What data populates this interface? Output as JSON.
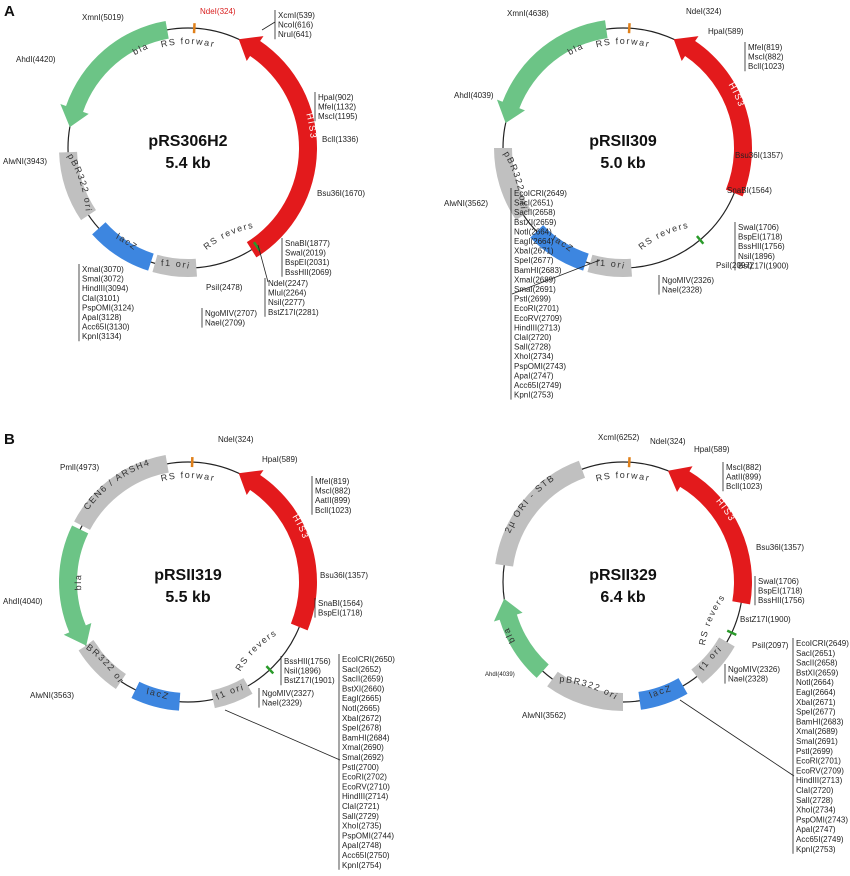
{
  "panels": {
    "a": "A",
    "b": "B"
  },
  "colors": {
    "bla": "#6cc486",
    "his3": "#e31a1c",
    "ori": "#c0c0c0",
    "lacz": "#3d86e0",
    "cen": "#c0c0c0",
    "tick_orange": "#e0801a",
    "tick_green": "#2a9a2a",
    "red_label": "#d92020"
  },
  "plasmids": [
    {
      "title": "pRS306H2",
      "size": "5.4 kb",
      "features": {
        "bla": "bla",
        "his3": "HIS3",
        "ori": "pBR322 ori",
        "lacz": "lacZ",
        "f1": "f1 ori",
        "pf": "pRS forward",
        "pr": "pRS reverse"
      },
      "labels": {
        "xmni": "XmnI(5019)",
        "ndei": "NdeI(324)",
        "ahdi": "AhdI(4420)",
        "alwni": "AlwNI(3943)",
        "psii": "PsiI(2478)",
        "top": [
          "XcmI(539)",
          "NcoI(616)",
          "NruI(641)"
        ],
        "his": [
          "HpaI(902)",
          "MfeI(1132)",
          "MscI(1195)"
        ],
        "bcli": "BclI(1336)",
        "bsu": "Bsu36I(1670)",
        "right": [
          "SnaBI(1877)",
          "SwaI(2019)",
          "BspEI(2031)",
          "BssHII(2069)"
        ],
        "mlu": [
          "NdeI(2247)",
          "MluI(2264)",
          "NsiI(2277)",
          "BstZ17I(2281)"
        ],
        "ngo": [
          "NgoMIV(2707)",
          "NaeI(2709)"
        ],
        "mcs": [
          "XmaI(3070)",
          "SmaI(3072)",
          "HindIII(3094)",
          "ClaI(3101)",
          "PspOMI(3124)",
          "ApaI(3128)",
          "Acc65I(3130)",
          "KpnI(3134)"
        ]
      }
    },
    {
      "title": "pRSII309",
      "size": "5.0 kb",
      "features": {
        "bla": "bla",
        "his3": "HIS3",
        "ori": "pBR322 ori",
        "lacz": "lacZ",
        "f1": "f1 ori",
        "pf": "pRS forward",
        "pr": "pRS reverse"
      },
      "labels": {
        "xmni": "XmnI(4638)",
        "ndei": "NdeI(324)",
        "hpai": "HpaI(589)",
        "ahdi": "AhdI(4039)",
        "alwni": "AlwNI(3562)",
        "his": [
          "MfeI(819)",
          "MscI(882)",
          "BclI(1023)"
        ],
        "bsu": "Bsu36I(1357)",
        "snabi": "SnaBI(1564)",
        "right": [
          "SwaI(1706)",
          "BspEI(1718)",
          "BssHII(1756)",
          "NsiI(1896)",
          "BstZ17I(1900)"
        ],
        "psii": "PsiI(2097)",
        "ngo": [
          "NgoMIV(2326)",
          "NaeI(2328)"
        ],
        "mcs": [
          "EcoICRI(2649)",
          "SacI(2651)",
          "SacII(2658)",
          "BstXI(2659)",
          "NotI(2664)",
          "EagI(2664)",
          "XbaI(2671)",
          "SpeI(2677)",
          "BamHI(2683)",
          "XmaI(2689)",
          "SmaI(2691)",
          "PstI(2699)",
          "EcoRI(2701)",
          "EcoRV(2709)",
          "HindIII(2713)",
          "ClaI(2720)",
          "SalI(2728)",
          "XhoI(2734)",
          "PspOMI(2743)",
          "ApaI(2747)",
          "Acc65I(2749)",
          "KpnI(2753)"
        ]
      }
    },
    {
      "title": "pRSII319",
      "size": "5.5 kb",
      "features": {
        "bla": "bla",
        "his3": "HIS3",
        "ori": "pBR322 ori",
        "lacz": "lacZ",
        "f1": "f1 ori",
        "cen": "CEN6 / ARSH4",
        "pf": "pRS forward",
        "pr": "pRS reverse"
      },
      "labels": {
        "pmli": "PmlI(4973)",
        "ndei": "NdeI(324)",
        "hpai": "HpaI(589)",
        "ahdi": "AhdI(4040)",
        "alwni": "AlwNI(3563)",
        "his": [
          "MfeI(819)",
          "MscI(882)",
          "AatII(899)",
          "BclI(1023)"
        ],
        "bsu": "Bsu36I(1357)",
        "right": [
          "SnaBI(1564)",
          "BspEI(1718)"
        ],
        "bss": [
          "BssHII(1756)",
          "NsiI(1896)",
          "BstZ17I(1901)"
        ],
        "ngo": [
          "NgoMIV(2327)",
          "NaeI(2329)"
        ],
        "mcs": [
          "EcoICRI(2650)",
          "SacI(2652)",
          "SacII(2659)",
          "BstXI(2660)",
          "EagI(2665)",
          "NotI(2665)",
          "XbaI(2672)",
          "SpeI(2678)",
          "BamHI(2684)",
          "XmaI(2690)",
          "SmaI(2692)",
          "PstI(2700)",
          "EcoRI(2702)",
          "EcoRV(2710)",
          "HindIII(2714)",
          "ClaI(2721)",
          "SalI(2729)",
          "XhoI(2735)",
          "PspOMI(2744)",
          "ApaI(2748)",
          "Acc65I(2750)",
          "KpnI(2754)"
        ]
      }
    },
    {
      "title": "pRSII329",
      "size": "6.4 kb",
      "features": {
        "bla": "bla",
        "his3": "HIS3",
        "ori": "pBR322 ori",
        "lacz": "lacZ",
        "f1": "f1 ori",
        "cen": "2µ ORI - STB",
        "pf": "pRS forward",
        "pr": "pRS reverse"
      },
      "labels": {
        "xcmi": "XcmI(6252)",
        "ndei": "NdeI(324)",
        "hpai": "HpaI(589)",
        "ahdi": "AhdI(4039)",
        "alwni": "AlwNI(3562)",
        "his": [
          "MscI(882)",
          "AatII(899)",
          "BclI(1023)"
        ],
        "bsu": "Bsu36I(1357)",
        "right": [
          "SwaI(1706)",
          "BspEI(1718)",
          "BssHII(1756)"
        ],
        "bstz": "BstZ17I(1900)",
        "psii": "PsiI(2097)",
        "ngo": [
          "NgoMIV(2326)",
          "NaeI(2328)"
        ],
        "mcs": [
          "EcoICRI(2649)",
          "SacI(2651)",
          "SacII(2658)",
          "BstXI(2659)",
          "NotI(2664)",
          "EagI(2664)",
          "XbaI(2671)",
          "SpeI(2677)",
          "BamHI(2683)",
          "XmaI(2689)",
          "SmaI(2691)",
          "PstI(2699)",
          "EcoRI(2701)",
          "EcoRV(2709)",
          "HindIII(2713)",
          "ClaI(2720)",
          "SalI(2728)",
          "XhoI(2734)",
          "PspOMI(2743)",
          "ApaI(2747)",
          "Acc65I(2749)",
          "KpnI(2753)"
        ]
      }
    }
  ]
}
